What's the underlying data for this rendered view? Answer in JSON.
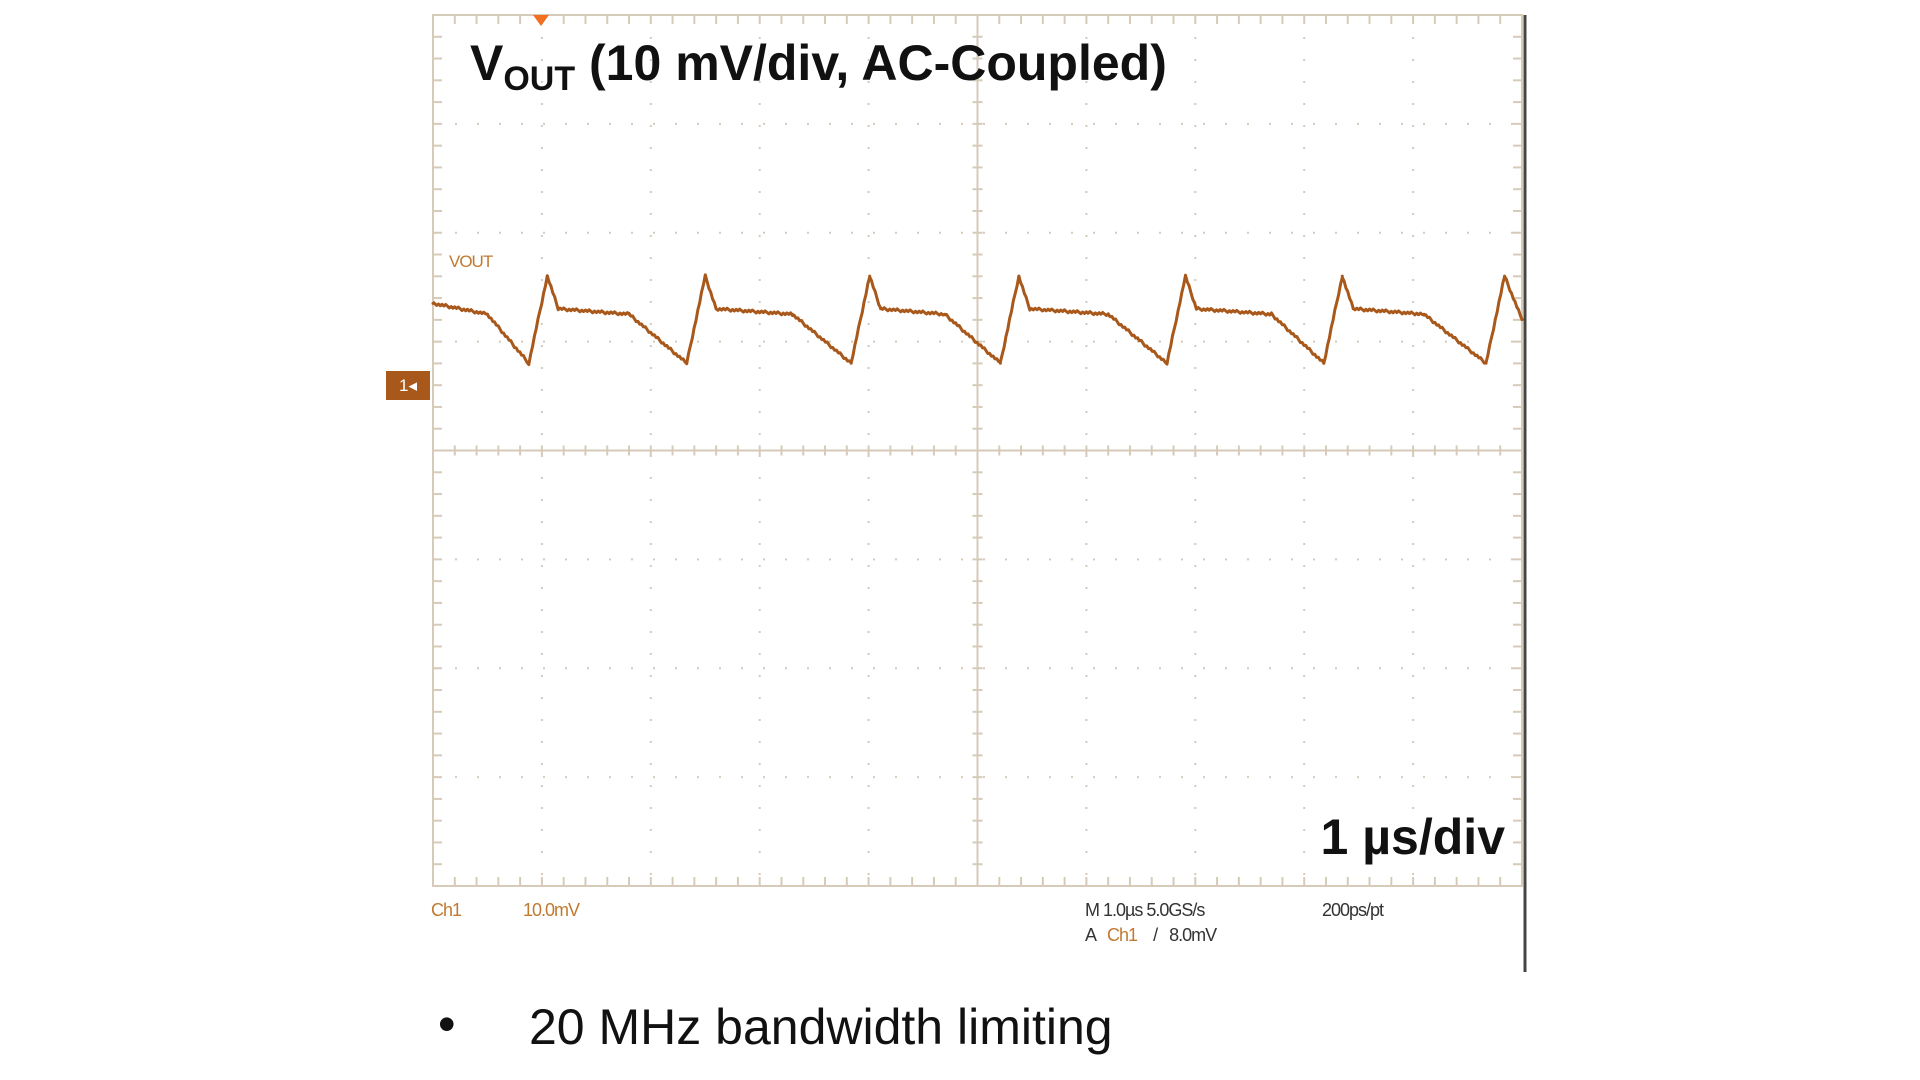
{
  "title": {
    "main": "V",
    "subscript": "OUT",
    "rest": " (10 mV/div, AC-Coupled)"
  },
  "time_scale_label": "1 µs/div",
  "trace_label": "VOUT",
  "channel_marker": "1",
  "readouts": {
    "channel": "Ch1",
    "volts_per_div": "10.0mV",
    "timebase": "M 1.0µs 5.0GS/s",
    "resolution": "200ps/pt",
    "trigger_prefix": "A",
    "trigger_source": "Ch1",
    "trigger_slope": "/",
    "trigger_level": "8.0mV"
  },
  "bullet": {
    "symbol": "•",
    "text": "20 MHz bandwidth limiting"
  },
  "colors": {
    "trace": "#a8581a",
    "graticule": "#d6cbb8",
    "trigger_marker": "#f07020",
    "frame_right": "#444444"
  },
  "chart_data": {
    "type": "line",
    "title": "VOUT (10 mV/div, AC-Coupled)",
    "xlabel": "",
    "ylabel": "",
    "x_unit": "µs",
    "y_unit": "mV (relative to Ch1 marker)",
    "xlim": [
      0,
      10
    ],
    "divisions": {
      "horizontal": 10,
      "vertical": 8
    },
    "grid": true,
    "series": [
      {
        "name": "VOUT",
        "x": [
          0,
          0.5,
          0.88,
          1.05,
          1.15,
          1.8,
          2.33,
          2.5,
          2.6,
          3.3,
          3.84,
          4.01,
          4.11,
          4.7,
          5.21,
          5.38,
          5.48,
          6.2,
          6.74,
          6.91,
          7.01,
          7.7,
          8.18,
          8.35,
          8.45,
          9.1,
          9.67,
          9.84,
          10
        ],
        "y": [
          7.5,
          6.5,
          2,
          10,
          7,
          6.5,
          2,
          10,
          7,
          6.5,
          2,
          10,
          7,
          6.5,
          2,
          10,
          7,
          6.5,
          2,
          10,
          7,
          6.5,
          2,
          10,
          7,
          6.5,
          2,
          10,
          6
        ]
      }
    ]
  }
}
